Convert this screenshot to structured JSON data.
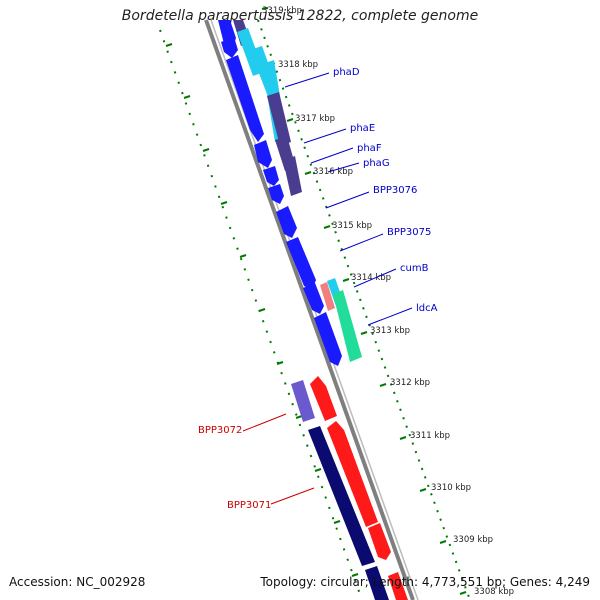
{
  "header": {
    "title": "Bordetella parapertussis 12822, complete genome"
  },
  "footer": {
    "accession": "Accession: NC_002928",
    "summary": "Topology: circular; Length: 4,773,551 bp; Genes: 4,249"
  },
  "ticks": [
    "3319 kbp",
    "3318 kbp",
    "3317 kbp",
    "3316 kbp",
    "3315 kbp",
    "3314 kbp",
    "3313 kbp",
    "3312 kbp",
    "3311 kbp",
    "3310 kbp",
    "3309 kbp",
    "3308 kbp"
  ],
  "gene_labels": {
    "phaD": "phaD",
    "phaE": "phaE",
    "phaF": "phaF",
    "phaG": "phaG",
    "bpp3076": "BPP3076",
    "bpp3075": "BPP3075",
    "cumB": "cumB",
    "ldcA": "ldcA",
    "bpp3072": "BPP3072",
    "bpp3071": "BPP3071"
  },
  "colors": {
    "forward_label": "#0000cc",
    "reverse_label": "#cc0000",
    "cds_blue": "#1a1aff",
    "cds_red": "#ff1a1a",
    "cds_navy": "#0a0a70",
    "cds_slate": "#4a3d8f",
    "cds_cyan": "#22ccee",
    "cds_seagreen": "#22dd99",
    "cds_pink": "#f08080",
    "backbone": "#7f7f7f",
    "tick_ring": "#007a00"
  }
}
